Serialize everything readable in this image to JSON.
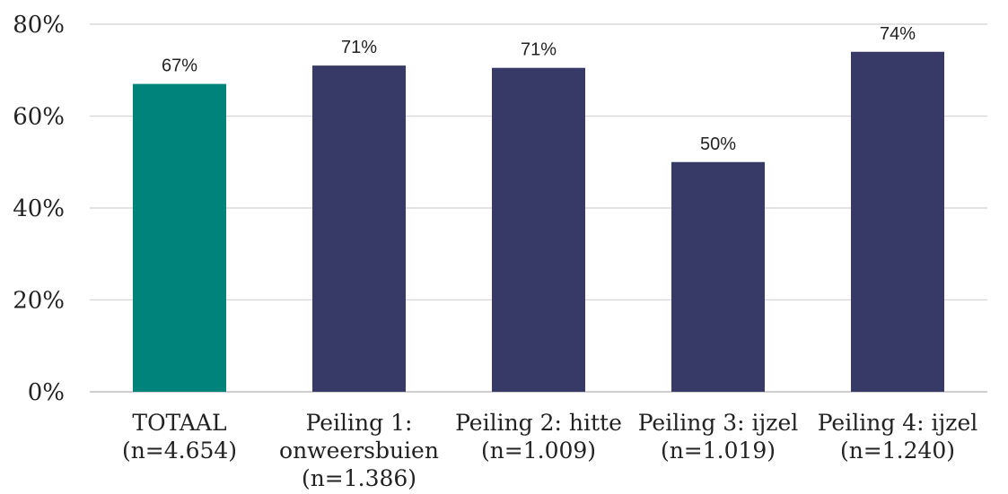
{
  "chart_data": {
    "type": "bar",
    "categories": [
      [
        "TOTAAL",
        "(n=4.654)"
      ],
      [
        "Peiling 1:",
        "onweersbuien",
        "(n=1.386)"
      ],
      [
        "Peiling 2: hitte",
        "(n=1.009)"
      ],
      [
        "Peiling 3: ijzel",
        "(n=1.019)"
      ],
      [
        "Peiling 4: ijzel",
        "(n=1.240)"
      ]
    ],
    "values": [
      67,
      71,
      70.5,
      50,
      74
    ],
    "data_labels": [
      "67%",
      "71%",
      "71%",
      "50%",
      "74%"
    ],
    "bar_colors": [
      "#00837a",
      "#373a66",
      "#373a66",
      "#373a66",
      "#373a66"
    ],
    "ylim": [
      0,
      80
    ],
    "yticks": [
      0,
      20,
      40,
      60,
      80
    ],
    "ytick_labels": [
      "0%",
      "20%",
      "40%",
      "60%",
      "80%"
    ],
    "grid": true,
    "legend": "none",
    "title": "",
    "xlabel": "",
    "ylabel": ""
  }
}
